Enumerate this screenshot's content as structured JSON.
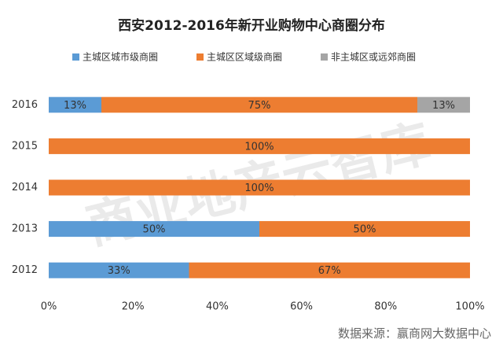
{
  "chart_data": {
    "type": "stacked_barh",
    "title": "西安2012-2016年新开业购物中心商圈分布",
    "categories": [
      "2016",
      "2015",
      "2014",
      "2013",
      "2012"
    ],
    "series": [
      {
        "name": "主城区城市级商圈",
        "color": "#5b9bd5",
        "values": [
          12.5,
          null,
          null,
          50,
          33.3
        ],
        "value_labels": [
          "13%",
          null,
          null,
          "50%",
          "33%"
        ]
      },
      {
        "name": "主城区区域级商圈",
        "color": "#ed7d31",
        "values": [
          75,
          100,
          100,
          50,
          66.7
        ],
        "value_labels": [
          "75%",
          "100%",
          "100%",
          "50%",
          "67%"
        ]
      },
      {
        "name": "非主城区或远郊商圈",
        "color": "#a5a5a5",
        "values": [
          12.5,
          null,
          null,
          null,
          null
        ],
        "value_labels": [
          "13%",
          null,
          null,
          null,
          null
        ]
      }
    ],
    "xlim": [
      0,
      100
    ],
    "xticks": [
      {
        "value": 0,
        "label": "0%"
      },
      {
        "value": 20,
        "label": "20%"
      },
      {
        "value": 40,
        "label": "40%"
      },
      {
        "value": 60,
        "label": "60%"
      },
      {
        "value": 80,
        "label": "80%"
      },
      {
        "value": 100,
        "label": "100%"
      }
    ],
    "legend": "top",
    "watermark": "商业地产云智库",
    "source": "数据来源：赢商网大数据中心"
  }
}
